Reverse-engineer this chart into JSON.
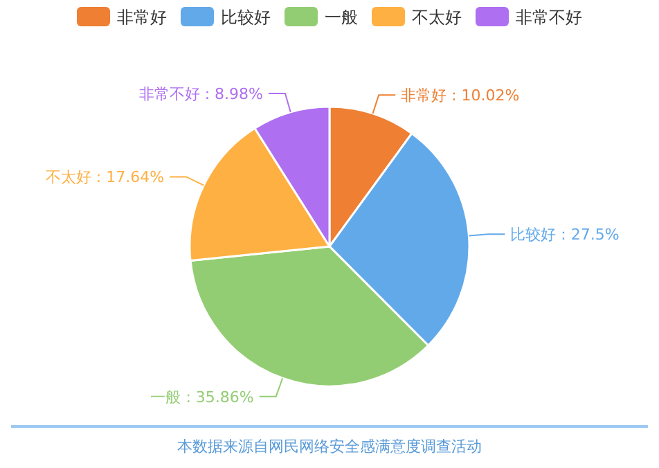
{
  "chart_data": {
    "type": "pie",
    "categories": [
      "非常好",
      "比较好",
      "一般",
      "不太好",
      "非常不好"
    ],
    "values": [
      10.02,
      27.5,
      35.86,
      17.64,
      8.98
    ],
    "value_labels": [
      "非常好 : 10.02%",
      "比较好 : 27.5%",
      "一般 : 35.86%",
      "不太好 : 17.64%",
      "非常不好 : 8.98%"
    ],
    "colors": [
      "#ee7f33",
      "#62a9ea",
      "#93cd73",
      "#feb042",
      "#ae6ff0"
    ],
    "legend": "top",
    "annotations": [
      "本数据来源自网民网络安全感满意度调查活动"
    ]
  }
}
